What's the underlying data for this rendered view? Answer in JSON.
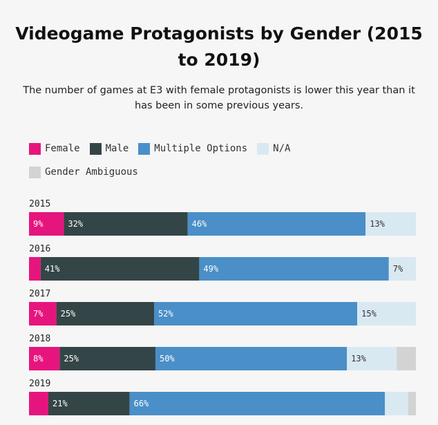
{
  "chart_data": {
    "type": "bar",
    "orientation": "horizontal",
    "stacked": true,
    "title": "Videogame Protagonists by Gender (2015 to 2019)",
    "subtitle": "The number of games at E3 with female protagonists is lower this year than it has been in some previous years.",
    "categories": [
      "2015",
      "2016",
      "2017",
      "2018",
      "2019"
    ],
    "series": [
      {
        "name": "Female",
        "color": "#e6157d",
        "text_color": "#ffffff",
        "values": [
          9,
          3,
          7,
          8,
          5
        ],
        "labels": [
          "9%",
          "",
          "7%",
          "8%",
          ""
        ]
      },
      {
        "name": "Male",
        "color": "#344547",
        "text_color": "#ffffff",
        "values": [
          32,
          41,
          25,
          25,
          21
        ],
        "labels": [
          "32%",
          "41%",
          "25%",
          "25%",
          "21%"
        ]
      },
      {
        "name": "Multiple Options",
        "color": "#4a8fc7",
        "text_color": "#ffffff",
        "values": [
          46,
          49,
          52,
          50,
          66
        ],
        "labels": [
          "46%",
          "49%",
          "52%",
          "50%",
          "66%"
        ]
      },
      {
        "name": "N/A",
        "color": "#d9e9f2",
        "text_color": "#333333",
        "values": [
          13,
          7,
          15,
          13,
          6
        ],
        "labels": [
          "13%",
          "7%",
          "15%",
          "13%",
          ""
        ]
      },
      {
        "name": "Gender Ambiguous",
        "color": "#d3d3d3",
        "text_color": "#333333",
        "values": [
          0,
          0,
          0,
          5,
          2
        ],
        "labels": [
          "",
          "",
          "",
          "",
          ""
        ]
      }
    ],
    "xlim": [
      0,
      100
    ],
    "grid": false,
    "legend_position": "top-left"
  }
}
